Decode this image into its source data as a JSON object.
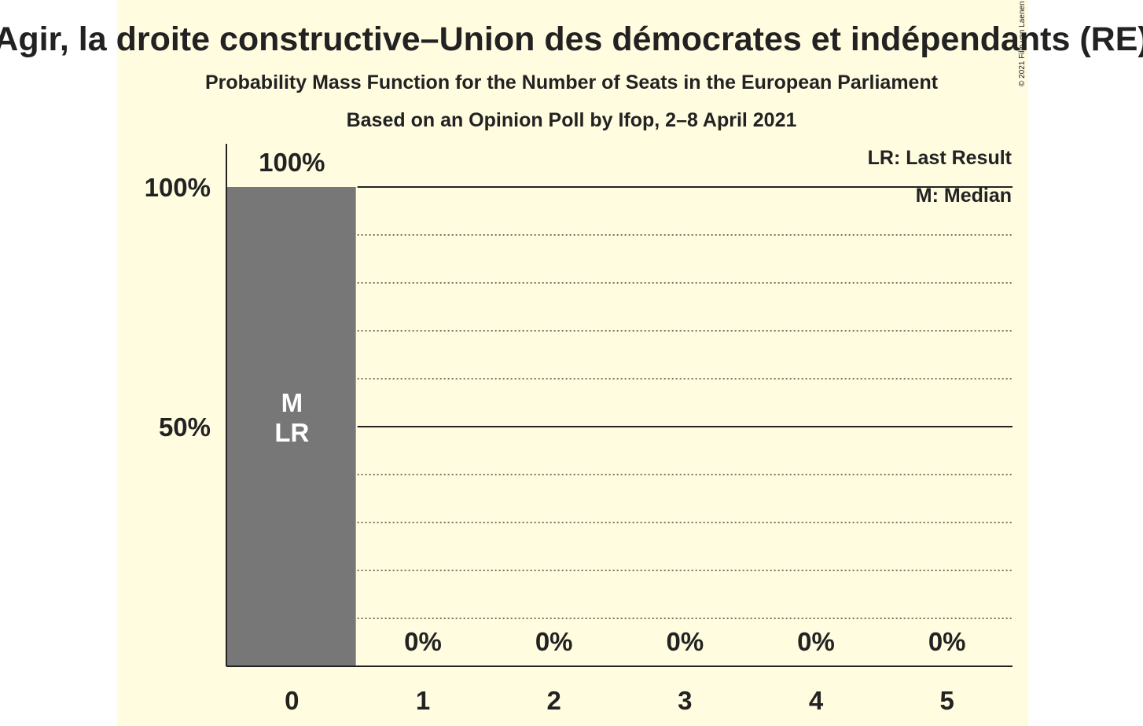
{
  "colors": {
    "background": "#FFFCE0",
    "bar": "#777777",
    "text": "#222222",
    "bar_label_inside": "#ffffff"
  },
  "title": "Agir, la droite constructive–Union des démocrates et indépendants (RE)",
  "subtitle1": "Probability Mass Function for the Number of Seats in the European Parliament",
  "subtitle2": "Based on an Opinion Poll by Ifop, 2–8 April 2021",
  "copyright": "© 2021 Filip van Laenen",
  "legend": {
    "lr": "LR: Last Result",
    "m": "M: Median"
  },
  "chart_data": {
    "type": "bar",
    "categories": [
      "0",
      "1",
      "2",
      "3",
      "4",
      "5"
    ],
    "values": [
      100,
      0,
      0,
      0,
      0,
      0
    ],
    "value_labels": [
      "100%",
      "0%",
      "0%",
      "0%",
      "0%",
      "0%"
    ],
    "bar_annotations": [
      [
        "M",
        "LR"
      ],
      [],
      [],
      [],
      [],
      []
    ],
    "ytick_labels": [
      "50%",
      "100%"
    ],
    "ytick_values": [
      50,
      100
    ],
    "ylim": [
      0,
      100
    ],
    "minor_gridlines": [
      10,
      20,
      30,
      40,
      60,
      70,
      80,
      90
    ],
    "grid": true,
    "legend_placement": "top-right",
    "xlabel": "",
    "ylabel": ""
  }
}
